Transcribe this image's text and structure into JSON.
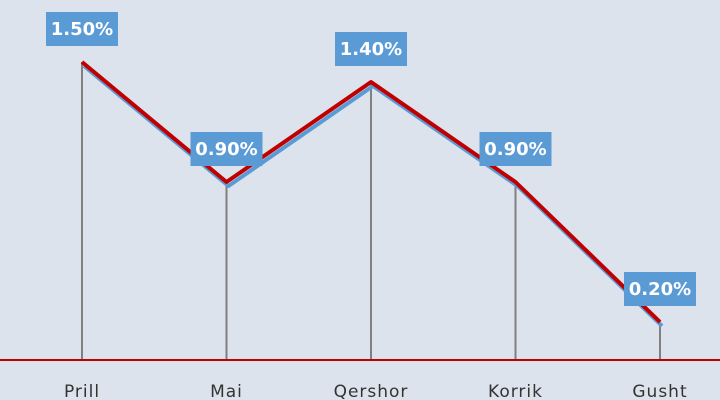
{
  "chart_data": {
    "type": "line",
    "categories": [
      "Prill",
      "Mai",
      "Qershor",
      "Korrik",
      "Gusht"
    ],
    "values": [
      1.5,
      0.9,
      1.4,
      0.9,
      0.2
    ],
    "value_labels": [
      "1.50%",
      "0.90%",
      "1.40%",
      "0.90%",
      "0.20%"
    ],
    "color": "#c00000"
  }
}
